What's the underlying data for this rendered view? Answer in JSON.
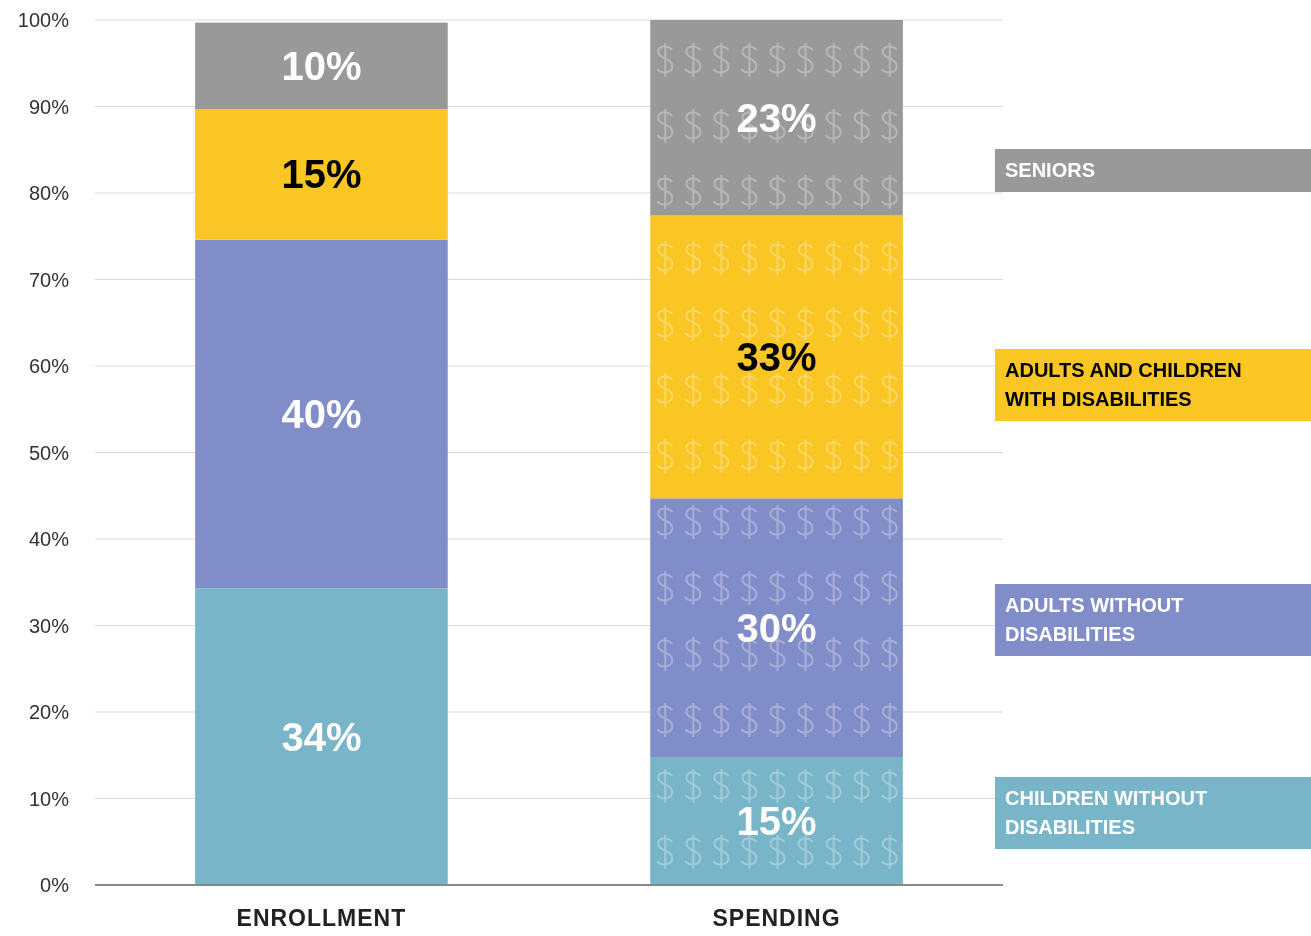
{
  "chart_data": {
    "type": "bar",
    "stacked": true,
    "categories": [
      "ENROLLMENT",
      "SPENDING"
    ],
    "series": [
      {
        "name": "CHILDREN WITHOUT DISABILITIES",
        "color": "#78b5c8",
        "values": [
          34.3,
          14.8
        ],
        "value_labels": [
          "34%",
          "15%"
        ]
      },
      {
        "name": "ADULTS WITHOUT DISABILITIES",
        "color": "#818dc8",
        "values": [
          40.3,
          29.9
        ],
        "value_labels": [
          "40%",
          "30%"
        ]
      },
      {
        "name": "ADULTS AND CHILDREN WITH DISABILITIES",
        "color": "#f9c623",
        "values": [
          15.1,
          32.7
        ],
        "value_labels": [
          "15%",
          "33%"
        ]
      },
      {
        "name": "SENIORS",
        "color": "#999999",
        "values": [
          10.0,
          22.6
        ],
        "value_labels": [
          "10%",
          "23%"
        ]
      }
    ],
    "ylim": [
      0,
      100
    ],
    "yticks": [
      {
        "value": 0,
        "label": "0%"
      },
      {
        "value": 10,
        "label": "10%"
      },
      {
        "value": 20,
        "label": "20%"
      },
      {
        "value": 30,
        "label": "30%"
      },
      {
        "value": 40,
        "label": "40%"
      },
      {
        "value": 50,
        "label": "50%"
      },
      {
        "value": 60,
        "label": "60%"
      },
      {
        "value": 70,
        "label": "70%"
      },
      {
        "value": 80,
        "label": "80%"
      },
      {
        "value": 90,
        "label": "90%"
      },
      {
        "value": 100,
        "label": "100%"
      }
    ],
    "grid": "y",
    "legend": "right"
  }
}
